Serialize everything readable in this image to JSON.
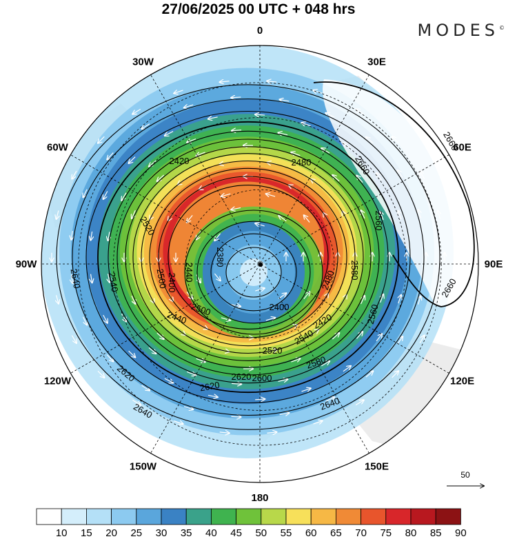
{
  "header": {
    "title": "27/06/2025  00 UTC  + 048 hrs",
    "brand": "MODES",
    "brand_mark": "©"
  },
  "map": {
    "projection": "south-polar-stereographic",
    "longitude_labels": [
      {
        "text": "0",
        "lon": 0
      },
      {
        "text": "30E",
        "lon": 30
      },
      {
        "text": "60E",
        "lon": 60
      },
      {
        "text": "90E",
        "lon": 90
      },
      {
        "text": "120E",
        "lon": 120
      },
      {
        "text": "150E",
        "lon": 150
      },
      {
        "text": "180",
        "lon": 180
      },
      {
        "text": "150W",
        "lon": -150
      },
      {
        "text": "120W",
        "lon": -120
      },
      {
        "text": "90W",
        "lon": -90
      },
      {
        "text": "60W",
        "lon": -60
      },
      {
        "text": "30W",
        "lon": -30
      }
    ],
    "contour_labels": [
      "2640",
      "2660",
      "2660",
      "2660",
      "2620",
      "2600",
      "2640",
      "2620",
      "2640",
      "2620",
      "2580",
      "2560",
      "2540",
      "2520",
      "2500",
      "2480",
      "2440",
      "2420",
      "2400",
      "2380",
      "2540",
      "2520",
      "2500",
      "2480",
      "2440",
      "2420",
      "2400",
      "2560",
      "2580"
    ],
    "wind_reference": {
      "label": "50"
    }
  },
  "colorbar": {
    "labels": [
      "10",
      "15",
      "20",
      "25",
      "30",
      "35",
      "40",
      "45",
      "50",
      "55",
      "60",
      "65",
      "70",
      "75",
      "80",
      "85",
      "90"
    ],
    "colors": [
      "#ffffff",
      "#d4eefb",
      "#b4e0f7",
      "#8ccaf0",
      "#5aa6dc",
      "#3a82c4",
      "#3aa28a",
      "#3fb34f",
      "#6fc23a",
      "#b8d84a",
      "#f7e05a",
      "#f6b845",
      "#f08a36",
      "#e8552c",
      "#d8262a",
      "#b8181f",
      "#8c1214"
    ]
  }
}
